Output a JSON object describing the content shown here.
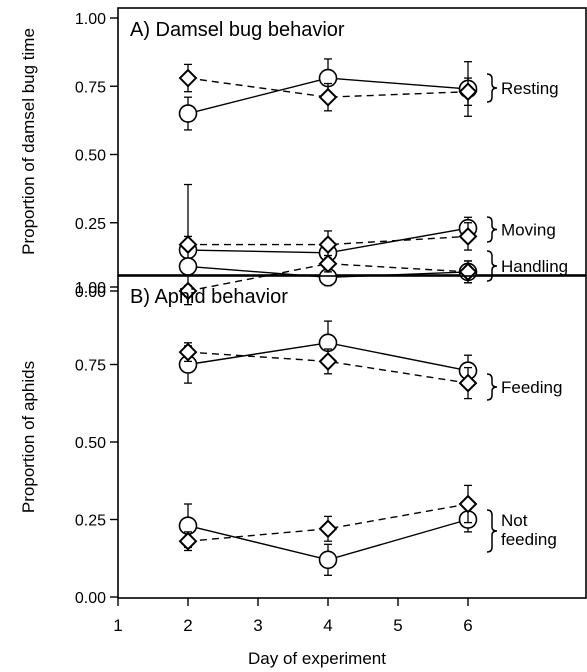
{
  "colors": {
    "ink": "#000000",
    "paper": "#ffffff"
  },
  "xlabel": "Day of experiment",
  "chart_data": [
    {
      "type": "line",
      "title": "A) Damsel bug behavior",
      "ylabel": "Proportion of damsel bug time",
      "xlim": [
        1,
        7
      ],
      "ylim": [
        0,
        1
      ],
      "xticks": [
        1,
        2,
        3,
        4,
        5,
        6
      ],
      "yticks": [
        "0.00",
        "0.25",
        "0.50",
        "0.75",
        "1.00"
      ],
      "yticks_values": [
        0,
        0.25,
        0.5,
        0.75,
        1
      ],
      "grid": false,
      "groups": [
        "Resting",
        "Moving",
        "Handling"
      ],
      "series": [
        {
          "marker": "circle",
          "line": "solid",
          "group": "Resting",
          "x": [
            2,
            4,
            6
          ],
          "y": [
            0.65,
            0.78,
            0.74
          ],
          "err": [
            0.06,
            0.07,
            0.1
          ]
        },
        {
          "marker": "diamond",
          "line": "dashed",
          "group": "Resting",
          "x": [
            2,
            4,
            6
          ],
          "y": [
            0.78,
            0.71,
            0.73
          ],
          "err": [
            0.05,
            0.05,
            0.05
          ]
        },
        {
          "marker": "circle",
          "line": "solid",
          "group": "Moving",
          "x": [
            2,
            4,
            6
          ],
          "y": [
            0.15,
            0.14,
            0.23
          ],
          "err": [
            0.05,
            0.05,
            0.04
          ]
        },
        {
          "marker": "diamond",
          "line": "dashed",
          "group": "Moving",
          "x": [
            2,
            4,
            6
          ],
          "y": [
            0.17,
            0.17,
            0.2
          ],
          "err": [
            0.22,
            0.05,
            0.05
          ]
        },
        {
          "marker": "circle",
          "line": "solid",
          "group": "Handling",
          "x": [
            2,
            4,
            6
          ],
          "y": [
            0.09,
            0.05,
            0.07
          ],
          "err": [
            0.03,
            0.03,
            0.04
          ]
        },
        {
          "marker": "diamond",
          "line": "dashed",
          "group": "Handling",
          "x": [
            2,
            4,
            6
          ],
          "y": [
            0.0,
            0.1,
            0.07
          ],
          "err": [
            0.02,
            0.03,
            0.04
          ]
        }
      ]
    },
    {
      "type": "line",
      "title": "B) Aphid behavior",
      "ylabel": "Proportion of aphids",
      "xlim": [
        1,
        7
      ],
      "ylim": [
        0,
        1
      ],
      "xticks": [
        1,
        2,
        3,
        4,
        5,
        6
      ],
      "yticks": [
        "0.00",
        "0.25",
        "0.50",
        "0.75",
        "1.00"
      ],
      "yticks_values": [
        0,
        0.25,
        0.5,
        0.75,
        1
      ],
      "grid": false,
      "groups": [
        "Feeding",
        "Not feeding"
      ],
      "series": [
        {
          "marker": "circle",
          "line": "solid",
          "group": "Feeding",
          "x": [
            2,
            4,
            6
          ],
          "y": [
            0.75,
            0.82,
            0.73
          ],
          "err": [
            0.06,
            0.07,
            0.05
          ]
        },
        {
          "marker": "diamond",
          "line": "dashed",
          "group": "Feeding",
          "x": [
            2,
            4,
            6
          ],
          "y": [
            0.79,
            0.76,
            0.69
          ],
          "err": [
            0.03,
            0.04,
            0.05
          ]
        },
        {
          "marker": "circle",
          "line": "solid",
          "group": "Not feeding",
          "x": [
            2,
            4,
            6
          ],
          "y": [
            0.23,
            0.12,
            0.25
          ],
          "err": [
            0.07,
            0.05,
            0.04
          ]
        },
        {
          "marker": "diamond",
          "line": "dashed",
          "group": "Not feeding",
          "x": [
            2,
            4,
            6
          ],
          "y": [
            0.18,
            0.22,
            0.3
          ],
          "err": [
            0.03,
            0.04,
            0.06
          ]
        }
      ]
    }
  ]
}
